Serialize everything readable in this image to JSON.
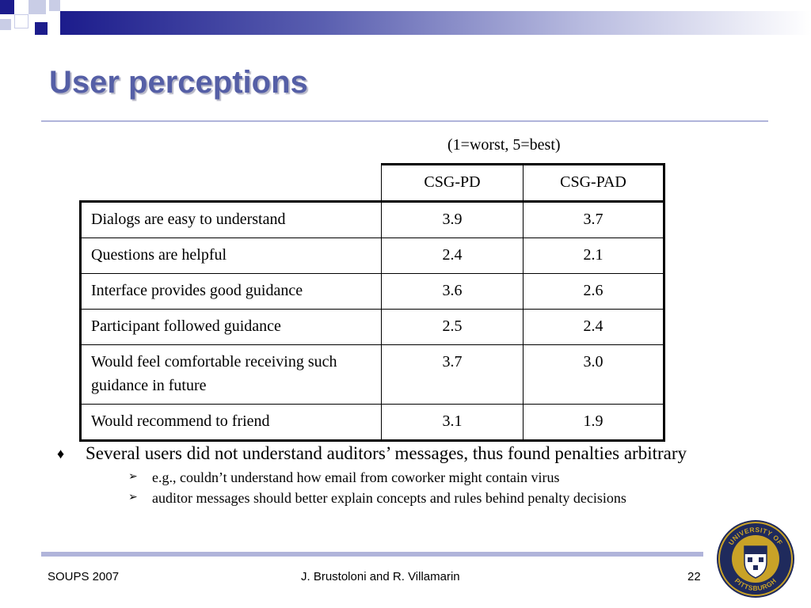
{
  "slide": {
    "title": "User perceptions",
    "scale_note": "(1=worst, 5=best)"
  },
  "table": {
    "columns": [
      "CSG-PD",
      "CSG-PAD"
    ],
    "rows": [
      {
        "label": "Dialogs are easy to understand",
        "csg_pd": "3.9",
        "csg_pad": "3.7"
      },
      {
        "label": "Questions are helpful",
        "csg_pd": "2.4",
        "csg_pad": "2.1"
      },
      {
        "label": "Interface provides good guidance",
        "csg_pd": "3.6",
        "csg_pad": "2.6"
      },
      {
        "label": "Participant followed guidance",
        "csg_pd": "2.5",
        "csg_pad": "2.4"
      },
      {
        "label": "Would feel comfortable receiving such guidance in future",
        "csg_pd": "3.7",
        "csg_pad": "3.0"
      },
      {
        "label": "Would recommend to friend",
        "csg_pd": "3.1",
        "csg_pad": "1.9"
      }
    ]
  },
  "bullets": {
    "main_marker": "♦",
    "sub_marker": "➢",
    "main": "Several users did not understand auditors’ messages, thus found penalties arbitrary",
    "sub": [
      "e.g., couldn’t understand how email from coworker might contain virus",
      "auditor messages should better explain concepts and rules behind penalty decisions"
    ]
  },
  "footer": {
    "conference": "SOUPS 2007",
    "authors": "J. Brustoloni and R. Villamarin",
    "page_number": "22"
  },
  "seal": {
    "top_text": "UNIVERSITY OF",
    "bottom_text": "PITTSBURGH"
  },
  "colors": {
    "title": "#555fa6",
    "accent_dark": "#1c1c8c",
    "accent_light": "#b0b4da",
    "seal_gold": "#c9a227",
    "seal_navy": "#1f2a5c"
  }
}
